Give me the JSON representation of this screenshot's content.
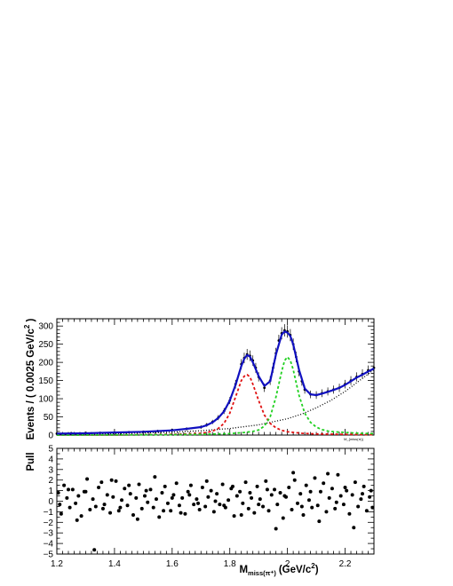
{
  "figure": {
    "xlabel_main": "M",
    "xlabel_sub": "miss(π⁺)",
    "xlabel_units": "(GeV/c",
    "xlabel_sup": "2",
    "xlabel_close": ")"
  },
  "chart_data": [
    {
      "type": "scatter",
      "panel": "fit",
      "ylabel": "Events / ( 0.0025 GeV/c",
      "ylabel_sup": "2",
      "ylabel_close": " )",
      "xlim": [
        1.2,
        2.3
      ],
      "ylim": [
        0,
        320
      ],
      "x_ticks": [
        "1.2",
        "1.4",
        "1.6",
        "1.8",
        "2",
        "2.2"
      ],
      "y_ticks": [
        "0",
        "50",
        "100",
        "150",
        "200",
        "250",
        "300"
      ],
      "annotation": "M_{miss(π)}",
      "series": [
        {
          "role": "data",
          "style": "points-with-errors",
          "color": "#000000",
          "x": [
            1.2,
            1.25,
            1.3,
            1.35,
            1.4,
            1.45,
            1.5,
            1.55,
            1.6,
            1.65,
            1.7,
            1.72,
            1.74,
            1.76,
            1.78,
            1.8,
            1.82,
            1.84,
            1.85,
            1.86,
            1.87,
            1.88,
            1.89,
            1.9,
            1.92,
            1.94,
            1.95,
            1.96,
            1.97,
            1.98,
            1.99,
            2.0,
            2.01,
            2.02,
            2.03,
            2.04,
            2.05,
            2.06,
            2.08,
            2.1,
            2.12,
            2.14,
            2.16,
            2.18,
            2.2,
            2.22,
            2.24,
            2.26,
            2.28,
            2.3
          ],
          "y": [
            4,
            5,
            6,
            6,
            7,
            8,
            9,
            11,
            14,
            17,
            22,
            28,
            36,
            48,
            66,
            95,
            140,
            195,
            212,
            222,
            218,
            205,
            185,
            160,
            130,
            150,
            185,
            225,
            260,
            280,
            288,
            285,
            275,
            250,
            215,
            175,
            148,
            125,
            112,
            110,
            115,
            120,
            125,
            130,
            140,
            150,
            160,
            168,
            178,
            185
          ]
        },
        {
          "role": "total-fit",
          "style": "solid",
          "color": "#1010c0",
          "x": [
            1.2,
            1.3,
            1.4,
            1.5,
            1.6,
            1.65,
            1.7,
            1.72,
            1.74,
            1.76,
            1.78,
            1.8,
            1.82,
            1.84,
            1.85,
            1.86,
            1.87,
            1.88,
            1.9,
            1.92,
            1.94,
            1.96,
            1.98,
            1.99,
            2.0,
            2.01,
            2.02,
            2.04,
            2.06,
            2.08,
            2.1,
            2.12,
            2.14,
            2.16,
            2.18,
            2.2,
            2.22,
            2.24,
            2.26,
            2.28,
            2.3
          ],
          "y": [
            4,
            5,
            7,
            9,
            13,
            17,
            22,
            27,
            35,
            47,
            65,
            95,
            138,
            190,
            210,
            220,
            216,
            200,
            162,
            135,
            148,
            222,
            276,
            285,
            282,
            272,
            250,
            180,
            128,
            112,
            110,
            114,
            119,
            124,
            130,
            138,
            148,
            158,
            166,
            175,
            183
          ]
        },
        {
          "role": "signal-1",
          "style": "dashed",
          "color": "#e01010",
          "x": [
            1.2,
            1.4,
            1.5,
            1.6,
            1.65,
            1.7,
            1.72,
            1.74,
            1.76,
            1.78,
            1.8,
            1.82,
            1.84,
            1.85,
            1.86,
            1.87,
            1.88,
            1.9,
            1.92,
            1.94,
            1.96,
            1.98,
            2.0,
            2.05,
            2.1,
            2.2,
            2.3
          ],
          "y": [
            0,
            0,
            1,
            2,
            3,
            5,
            7,
            11,
            18,
            32,
            60,
            105,
            150,
            162,
            166,
            160,
            140,
            95,
            55,
            32,
            20,
            13,
            9,
            5,
            3,
            2,
            1
          ]
        },
        {
          "role": "signal-2",
          "style": "dashed",
          "color": "#20d020",
          "x": [
            1.2,
            1.6,
            1.7,
            1.8,
            1.85,
            1.88,
            1.9,
            1.92,
            1.94,
            1.96,
            1.98,
            1.99,
            2.0,
            2.01,
            2.02,
            2.04,
            2.06,
            2.08,
            2.1,
            2.12,
            2.14,
            2.16,
            2.2,
            2.25,
            2.3
          ],
          "y": [
            0,
            1,
            2,
            4,
            7,
            10,
            14,
            25,
            50,
            105,
            175,
            205,
            215,
            205,
            180,
            110,
            60,
            35,
            22,
            15,
            11,
            9,
            7,
            5,
            4
          ]
        },
        {
          "role": "background",
          "style": "dotted",
          "color": "#000000",
          "x": [
            1.2,
            1.3,
            1.4,
            1.5,
            1.6,
            1.7,
            1.8,
            1.9,
            2.0,
            2.05,
            2.1,
            2.15,
            2.2,
            2.25,
            2.3
          ],
          "y": [
            2,
            3,
            4,
            6,
            8,
            12,
            18,
            28,
            45,
            58,
            75,
            95,
            120,
            150,
            180
          ]
        }
      ]
    },
    {
      "type": "scatter",
      "panel": "pull",
      "ylabel": "Pull",
      "xlim": [
        1.2,
        2.3
      ],
      "ylim": [
        -5,
        5
      ],
      "x_ticks": [
        "1.2",
        "1.4",
        "1.6",
        "1.8",
        "2",
        "2.2"
      ],
      "y_ticks": [
        "−5",
        "−4",
        "−3",
        "−2",
        "−1",
        "0",
        "1",
        "2",
        "3",
        "4",
        "5"
      ],
      "series": [
        {
          "role": "pull",
          "color": "#000000",
          "x": [
            1.205,
            1.215,
            1.225,
            1.235,
            1.245,
            1.255,
            1.265,
            1.275,
            1.285,
            1.295,
            1.305,
            1.315,
            1.325,
            1.335,
            1.345,
            1.355,
            1.365,
            1.375,
            1.385,
            1.395,
            1.405,
            1.415,
            1.425,
            1.435,
            1.445,
            1.455,
            1.465,
            1.475,
            1.485,
            1.495,
            1.505,
            1.515,
            1.525,
            1.535,
            1.545,
            1.555,
            1.565,
            1.575,
            1.585,
            1.595,
            1.605,
            1.615,
            1.625,
            1.635,
            1.645,
            1.655,
            1.665,
            1.675,
            1.685,
            1.695,
            1.705,
            1.715,
            1.725,
            1.735,
            1.745,
            1.755,
            1.765,
            1.775,
            1.785,
            1.795,
            1.805,
            1.815,
            1.825,
            1.835,
            1.845,
            1.855,
            1.865,
            1.875,
            1.885,
            1.895,
            1.905,
            1.915,
            1.925,
            1.935,
            1.945,
            1.955,
            1.965,
            1.975,
            1.985,
            1.995,
            2.005,
            2.015,
            2.025,
            2.035,
            2.045,
            2.055,
            2.065,
            2.075,
            2.085,
            2.095,
            2.105,
            2.115,
            2.125,
            2.135,
            2.145,
            2.155,
            2.165,
            2.175,
            2.185,
            2.195,
            2.205,
            2.215,
            2.225,
            2.235,
            2.245,
            2.255,
            2.265,
            2.275,
            2.285,
            2.295,
            1.21,
            1.24,
            1.27,
            1.3,
            1.33,
            1.36,
            1.39,
            1.42,
            1.45,
            1.48,
            1.51,
            1.54,
            1.57,
            1.6,
            1.63,
            1.66,
            1.69,
            1.72,
            1.75,
            1.78,
            1.81,
            1.84,
            1.87,
            1.9,
            1.93,
            1.96,
            1.99,
            2.02,
            2.05,
            2.08,
            2.11,
            2.14,
            2.17,
            2.2,
            2.23,
            2.26,
            2.29
          ],
          "y": [
            0.8,
            -1.2,
            1.5,
            0.3,
            -0.6,
            1.1,
            -0.2,
            0.5,
            -1.4,
            0.9,
            2.1,
            -0.8,
            0.2,
            -0.5,
            1.3,
            1.8,
            -0.3,
            0.6,
            -1.1,
            0.4,
            1.9,
            -0.9,
            0.1,
            1.2,
            -0.4,
            0.7,
            -1.3,
            0.3,
            1.6,
            -0.7,
            0.5,
            -0.1,
            1.1,
            -0.6,
            0.2,
            -1.5,
            0.8,
            1.4,
            -0.2,
            -0.9,
            0.6,
            1.7,
            -0.4,
            0.3,
            -1.2,
            0.9,
            1.5,
            -0.3,
            0.2,
            -0.8,
            1.3,
            -0.5,
            0.4,
            1.0,
            -1.0,
            0.7,
            -0.3,
            1.6,
            -0.6,
            0.1,
            1.2,
            -1.4,
            0.5,
            0.9,
            -0.2,
            1.8,
            -0.7,
            0.3,
            -1.1,
            1.4,
            0.2,
            -0.5,
            1.9,
            -0.9,
            0.6,
            1.1,
            -0.3,
            0.8,
            -1.6,
            0.4,
            1.3,
            -0.8,
            2.0,
            -0.2,
            0.7,
            -1.3,
            1.5,
            0.1,
            -0.6,
            2.2,
            -0.4,
            0.9,
            1.7,
            -1.0,
            0.3,
            1.2,
            -0.7,
            2.5,
            0.5,
            -0.3,
            1.0,
            -1.2,
            0.6,
            1.8,
            -0.5,
            0.2,
            1.4,
            -0.9,
            0.4,
            -0.6,
            -0.3,
            1.1,
            -1.8,
            0.9,
            -4.6,
            -0.7,
            2.0,
            -0.6,
            1.5,
            -1.7,
            1.0,
            2.3,
            -0.9,
            0.3,
            -1.1,
            0.6,
            -0.2,
            1.9,
            0.0,
            -0.4,
            1.4,
            -1.3,
            0.8,
            -0.3,
            1.1,
            -2.6,
            0.5,
            2.7,
            -0.5,
            0.9,
            -1.9,
            2.6,
            -0.1,
            1.3,
            -2.5,
            0.7,
            1.0
          ]
        }
      ]
    }
  ]
}
